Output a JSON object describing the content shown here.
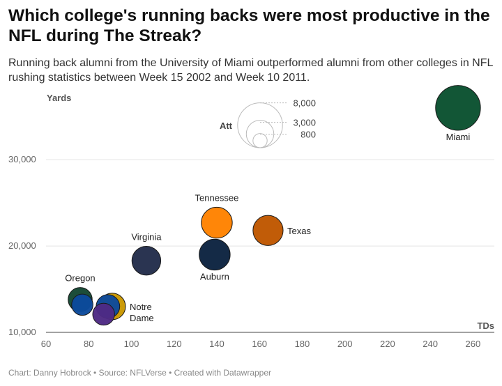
{
  "title": "Which college's running backs were most productive in the NFL during The Streak?",
  "subtitle": "Running back alumni from the University of Miami outperformed alumni from other colleges in NFL rushing statistics between Week 15 2002 and Week 10 2011.",
  "footer": {
    "credit": "Chart: Danny Hobrock",
    "source": "Source: NFLVerse",
    "tool": "Created with Datawrapper",
    "separator": " • "
  },
  "chart_data": {
    "type": "scatter",
    "xlabel": "TDs",
    "ylabel": "Yards",
    "xlim": [
      60,
      270
    ],
    "ylim": [
      10000,
      38000
    ],
    "x_ticks": [
      60,
      80,
      100,
      120,
      140,
      160,
      180,
      200,
      220,
      240,
      260
    ],
    "x_tick_labels": [
      "60",
      "80",
      "100",
      "120",
      "140",
      "160",
      "180",
      "200",
      "220",
      "240",
      "260"
    ],
    "y_ticks": [
      10000,
      20000,
      30000
    ],
    "y_tick_labels": [
      "10,000",
      "20,000",
      "30,000"
    ],
    "size_legend": {
      "title": "Att",
      "values": [
        8000,
        3000,
        800
      ],
      "labels": [
        "8,000",
        "3,000",
        "800"
      ],
      "placement": "top-center"
    },
    "points": [
      {
        "label": "Miami",
        "x": 253,
        "y": 36000,
        "att": 8000,
        "color": "#0a5130",
        "label_pos": "below"
      },
      {
        "label": "Tennessee",
        "x": 140,
        "y": 22700,
        "att": 3800,
        "color": "#ff8200",
        "label_pos": "above"
      },
      {
        "label": "Texas",
        "x": 164,
        "y": 21800,
        "att": 3600,
        "color": "#bf5700",
        "label_pos": "right"
      },
      {
        "label": "Auburn",
        "x": 139,
        "y": 19000,
        "att": 3800,
        "color": "#0c2340",
        "label_pos": "below"
      },
      {
        "label": "Virginia",
        "x": 107,
        "y": 18300,
        "att": 3300,
        "color": "#232d4b",
        "label_pos": "above"
      },
      {
        "label": "Oregon",
        "x": 76,
        "y": 13800,
        "att": 2300,
        "color": "#154733",
        "label_pos": "above"
      },
      {
        "label": "",
        "x": 77,
        "y": 13200,
        "att": 1800,
        "color": "#0c4a9c",
        "label_pos": "none"
      },
      {
        "label": "Notre Dame",
        "x": 91,
        "y": 13000,
        "att": 2800,
        "color": "#c99700",
        "label_pos": "right"
      },
      {
        "label": "",
        "x": 89,
        "y": 13000,
        "att": 2200,
        "color": "#0c4a9c",
        "label_pos": "none"
      },
      {
        "label": "",
        "x": 87,
        "y": 12100,
        "att": 1900,
        "color": "#4e2a84",
        "label_pos": "none"
      }
    ]
  }
}
